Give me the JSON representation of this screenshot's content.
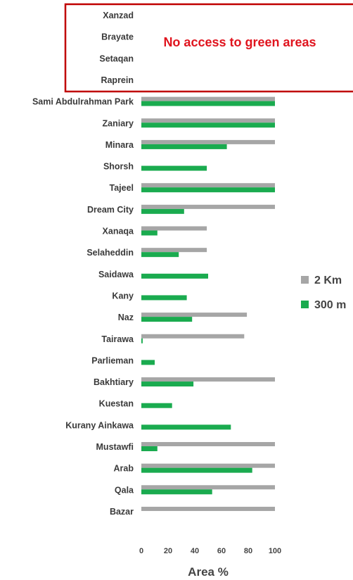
{
  "chart_data": {
    "type": "bar",
    "orientation": "horizontal",
    "categories": [
      "Xanzad",
      "Brayate",
      "Setaqan",
      "Raprein",
      "Sami Abdulrahman Park",
      "Zaniary",
      "Minara",
      "Shorsh",
      "Tajeel",
      "Dream City",
      "Xanaqa",
      "Selaheddin",
      "Saidawa",
      "Kany",
      "Naz",
      "Tairawa",
      "Parlieman",
      "Bakhtiary",
      "Kuestan",
      "Kurany Ainkawa",
      "Mustawfi",
      "Arab",
      "Qala",
      "Bazar"
    ],
    "series": [
      {
        "name": "2 Km",
        "color": "#a6a6a6",
        "values": [
          0,
          0,
          0,
          0,
          100,
          100,
          100,
          0,
          100,
          100,
          49,
          49,
          0,
          0,
          79,
          77,
          0,
          100,
          0,
          0,
          100,
          100,
          100,
          100
        ]
      },
      {
        "name": "300 m",
        "color": "#1aab4f",
        "values": [
          0,
          0,
          0,
          0,
          100,
          100,
          64,
          49,
          100,
          32,
          12,
          28,
          50,
          34,
          38,
          1,
          10,
          39,
          23,
          67,
          12,
          83,
          53,
          0
        ]
      }
    ],
    "xlabel": "Area %",
    "xlim": [
      0,
      100
    ],
    "xticks": [
      0,
      20,
      40,
      60,
      80,
      100
    ],
    "legend_position": "right",
    "annotation": {
      "text": "No access to green areas",
      "color": "#e0141e",
      "categories": [
        "Xanzad",
        "Brayate",
        "Setaqan",
        "Raprein"
      ]
    }
  }
}
